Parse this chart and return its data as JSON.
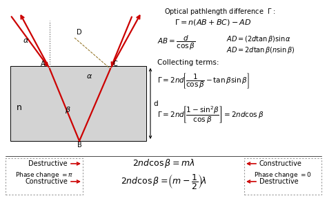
{
  "bg_color": "#ffffff",
  "film_color": "#d3d3d3",
  "arrow_color": "#cc0000",
  "dashed_color": "#666666",
  "brown_dashed_color": "#8B6914",
  "title": "Optical pathlength difference  $\\Gamma$ :",
  "eq1": "$\\Gamma = n(AB + BC) - AD$",
  "eq2": "$AB = \\dfrac{d}{\\cos\\beta}$",
  "eq3": "$AD = (2d\\tan\\beta)\\sin\\alpha$",
  "eq4": "$AD = 2d\\tan\\beta(n\\sin\\beta)$",
  "eq5": "Collecting terms:",
  "eq6": "$\\Gamma = 2nd\\!\\left[\\dfrac{1}{\\cos\\beta} - \\tan\\beta\\sin\\beta\\right]$",
  "eq7": "$\\Gamma = 2nd\\!\\left[\\dfrac{1-\\sin^2\\!\\beta}{\\cos\\beta}\\right] = 2nd\\cos\\beta$",
  "bot1": "$2nd\\cos\\beta = m\\lambda$",
  "bot2": "$2nd\\cos\\beta = \\!\\left(m - \\dfrac{1}{2}\\right)\\!\\lambda$",
  "destructive1": "Destructive",
  "constructive1": "Constructive",
  "constructive2": "Constructive",
  "destructive2": "Destructive",
  "phase_left": "Phase change $= \\pi$",
  "phase_right": "Phase change $= 0$"
}
